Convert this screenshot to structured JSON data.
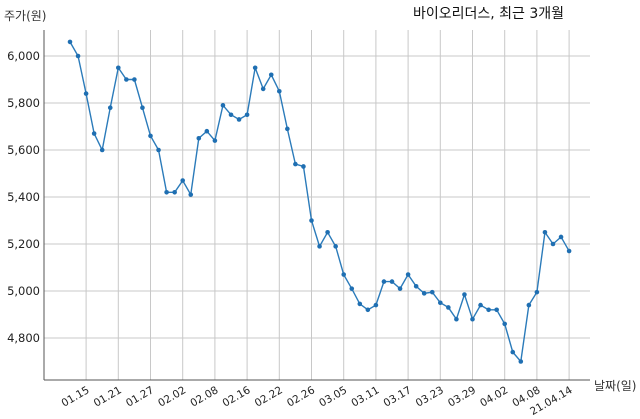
{
  "chart_data": {
    "type": "line",
    "title": "바이오리더스, 최근 3개월",
    "ylabel": "주가(원)",
    "xlabel": "날짜(일)",
    "ylim": [
      4650,
      6150
    ],
    "yticks": [
      4800,
      5000,
      5200,
      5400,
      5600,
      5800,
      6000
    ],
    "ytick_labels": [
      "4,800",
      "5,000",
      "5,200",
      "5,400",
      "5,600",
      "5,800",
      "6,000"
    ],
    "xtick_labels": [
      "01.15",
      "01.21",
      "01.27",
      "02.02",
      "02.08",
      "02.16",
      "02.22",
      "02.26",
      "03.05",
      "03.11",
      "03.17",
      "03.23",
      "03.29",
      "04.02",
      "04.08",
      "21.04.14"
    ],
    "xtick_index": [
      2,
      6,
      10,
      14,
      18,
      22,
      26,
      30,
      34,
      38,
      42,
      46,
      50,
      54,
      58,
      62
    ],
    "grid": true,
    "series": [
      {
        "values": [
          6060,
          6000,
          5840,
          5670,
          5600,
          5780,
          5950,
          5900,
          5900,
          5780,
          5660,
          5600,
          5420,
          5420,
          5470,
          5410,
          5650,
          5680,
          5640,
          5790,
          5750,
          5730,
          5750,
          5950,
          5860,
          5920,
          5850,
          5690,
          5540,
          5530,
          5300,
          5190,
          5250,
          5190,
          5070,
          5010,
          4945,
          4920,
          4940,
          5040,
          5040,
          5010,
          5070,
          5020,
          4990,
          4995,
          4950,
          4930,
          4880,
          4985,
          4880,
          4940,
          4920,
          4920,
          4860,
          4740,
          4700,
          4940,
          4995,
          5250,
          5200,
          5230,
          5170
        ]
      }
    ]
  }
}
